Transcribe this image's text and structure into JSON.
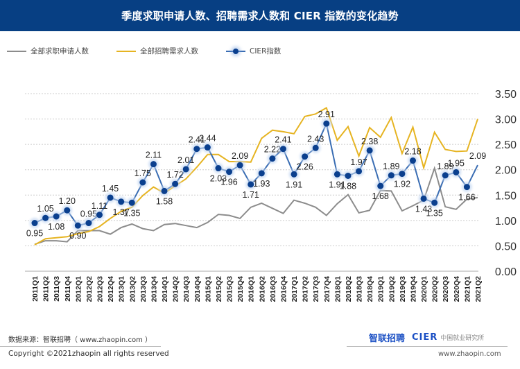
{
  "header": {
    "title": "季度求职申请人数、招聘需求人数和 CIER 指数的变化趋势"
  },
  "colors": {
    "header_bg": "#073f83",
    "applicants": "#8c8c8c",
    "demand": "#e6b422",
    "cier": "#3a6db3",
    "cier_marker": "#0a3f8e"
  },
  "footer": {
    "source": "数据来源：智联招聘（ www.zhaopin.com ）",
    "copyright": "Copyright ©2021zhaopin all rights reserved",
    "logo_zhaopin": "智联招聘",
    "logo_cier": "CIER",
    "logo_cier_cn": "中国就业研究所",
    "url": "www.zhaopin.com"
  },
  "chart_data": {
    "type": "line",
    "title": "季度求职申请人数、招聘需求人数和 CIER 指数的变化趋势",
    "xlabel": "",
    "ylabel": "",
    "ylim": [
      0,
      3.5
    ],
    "yticks": [
      "0.00",
      "0.50",
      "1.00",
      "1.50",
      "2.00",
      "2.50",
      "3.00",
      "3.50"
    ],
    "grid": true,
    "legend_position": "top-left",
    "x": [
      "2011Q1",
      "2011Q2",
      "2011Q3",
      "2011Q4",
      "2012Q1",
      "2012Q2",
      "2012Q3",
      "2012Q4",
      "2013Q1",
      "2013Q2",
      "2013Q3",
      "2013Q4",
      "2014Q1",
      "2014Q2",
      "2014Q3",
      "2014Q4",
      "2015Q1",
      "2015Q2",
      "2015Q3",
      "2015Q4",
      "2016Q1",
      "2016Q2",
      "2016Q3",
      "2016Q4",
      "2017Q1",
      "2017Q2",
      "2017Q3",
      "2017Q4",
      "2018Q1",
      "2018Q2",
      "2018Q3",
      "2018Q4",
      "2019Q1",
      "2019Q2",
      "2019Q3",
      "2019Q4",
      "2020Q1",
      "2020Q2",
      "2020Q3",
      "2020Q4",
      "2021Q1",
      "2021Q2"
    ],
    "series": [
      {
        "name": "全部求职申请人数",
        "key": "applicants",
        "values": [
          0.53,
          0.6,
          0.6,
          0.58,
          0.8,
          0.8,
          0.8,
          0.73,
          0.86,
          0.93,
          0.84,
          0.8,
          0.92,
          0.94,
          0.9,
          0.86,
          0.96,
          1.12,
          1.1,
          1.04,
          1.26,
          1.34,
          1.24,
          1.14,
          1.4,
          1.34,
          1.26,
          1.1,
          1.33,
          1.51,
          1.15,
          1.2,
          1.59,
          1.58,
          1.19,
          1.29,
          1.4,
          2.03,
          1.27,
          1.22,
          1.42,
          1.45
        ]
      },
      {
        "name": "全部招聘需求人数",
        "key": "demand",
        "values": [
          0.52,
          0.64,
          0.66,
          0.68,
          0.74,
          0.78,
          0.88,
          1.04,
          1.18,
          1.26,
          1.49,
          1.66,
          1.54,
          1.68,
          1.82,
          2.05,
          2.3,
          2.3,
          2.16,
          2.16,
          2.15,
          2.62,
          2.78,
          2.75,
          2.71,
          3.05,
          3.1,
          3.22,
          2.58,
          2.85,
          2.27,
          2.83,
          2.64,
          3.03,
          2.32,
          2.84,
          2.04,
          2.74,
          2.4,
          2.36,
          2.37,
          3.0
        ]
      },
      {
        "name": "CIER指数",
        "key": "cier",
        "values": [
          0.95,
          1.05,
          1.08,
          1.2,
          0.9,
          0.95,
          1.11,
          1.45,
          1.37,
          1.35,
          1.75,
          2.11,
          1.58,
          1.72,
          2.01,
          2.41,
          2.44,
          2.03,
          1.96,
          2.09,
          1.71,
          1.93,
          2.22,
          2.41,
          1.91,
          2.26,
          2.43,
          2.91,
          1.91,
          1.88,
          1.97,
          2.38,
          1.68,
          1.89,
          1.92,
          2.18,
          1.43,
          1.35,
          1.89,
          1.95,
          1.66,
          2.09
        ],
        "labels": [
          "0.95",
          "1.05",
          "1.08",
          "1.20",
          "0.90",
          "0.95",
          "1.11",
          "1.45",
          "1.37",
          "1.35",
          "1.75",
          "2.11",
          "1.58",
          "1.72",
          "2.01",
          "2.41",
          "2.44",
          "2.03",
          "1.96",
          "2.09",
          "1.71",
          "1.93",
          "2.22",
          "2.41",
          "1.91",
          "2.26",
          "2.43",
          "2.91",
          "1.91",
          "1.88",
          "1.97",
          "2.38",
          "1.68",
          "1.89",
          "1.92",
          "2.18",
          "1.43",
          "1.35",
          "1.89",
          "1.95",
          "1.66",
          "2.09"
        ]
      }
    ]
  }
}
